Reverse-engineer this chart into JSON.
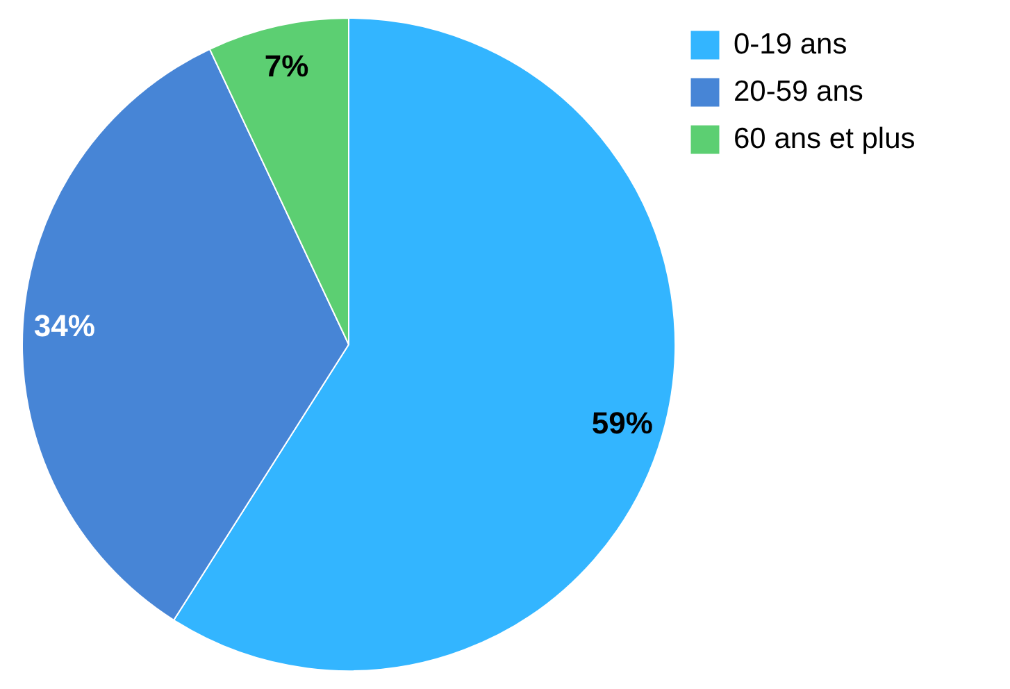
{
  "chart_data": {
    "type": "pie",
    "categories": [
      "0-19 ans",
      "20-59 ans",
      "60 ans et plus"
    ],
    "values": [
      59,
      34,
      7
    ],
    "colors": [
      "#33b5ff",
      "#4785d6",
      "#5ccf72"
    ],
    "data_labels": true,
    "value_labels": [
      "59%",
      "34%",
      "7%"
    ],
    "legend": "top right"
  }
}
